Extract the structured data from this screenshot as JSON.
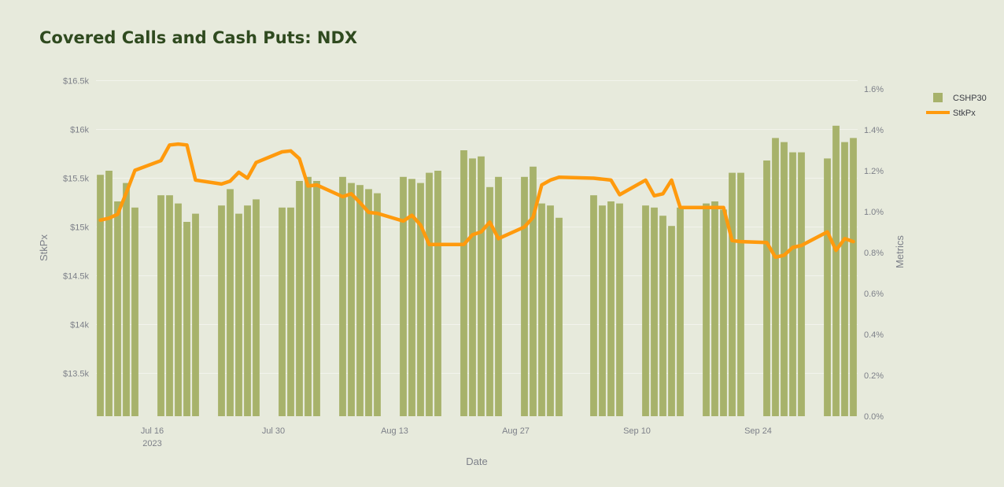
{
  "page": {
    "title": "Covered Calls and Cash Puts: NDX"
  },
  "colors": {
    "background": "#e7eadc",
    "bars": "#a7b26b",
    "line": "#ff9a0d",
    "grid": "#f2f3ec",
    "title": "#2f4a1f"
  },
  "chart_data": {
    "type": "bar",
    "title": "Covered Calls and Cash Puts: NDX",
    "xlabel": "Date",
    "ylabel": "StkPx",
    "y2label": "Metrics",
    "x_start": "2023-07-10",
    "x_end": "2023-10-06",
    "xticks": [
      {
        "date": "2023-07-16",
        "label": "Jul 16",
        "sublabel": "2023"
      },
      {
        "date": "2023-07-30",
        "label": "Jul 30",
        "sublabel": ""
      },
      {
        "date": "2023-08-13",
        "label": "Aug 13",
        "sublabel": ""
      },
      {
        "date": "2023-08-27",
        "label": "Aug 27",
        "sublabel": ""
      },
      {
        "date": "2023-09-10",
        "label": "Sep 10",
        "sublabel": ""
      },
      {
        "date": "2023-09-24",
        "label": "Sep 24",
        "sublabel": ""
      }
    ],
    "y_left": {
      "range": [
        13060,
        16520
      ],
      "ticks": [
        13500,
        14000,
        14500,
        15000,
        15500,
        16000,
        16500
      ],
      "tick_labels": [
        "$13.5k",
        "$14k",
        "$14.5k",
        "$15k",
        "$15.5k",
        "$16k",
        "$16.5k"
      ]
    },
    "y_right": {
      "range": [
        0,
        1.65
      ],
      "ticks": [
        0,
        0.2,
        0.4,
        0.6,
        0.8,
        1.0,
        1.2,
        1.4,
        1.6
      ],
      "tick_labels": [
        "0.0%",
        "0.2%",
        "0.4%",
        "0.6%",
        "0.8%",
        "1.0%",
        "1.2%",
        "1.4%",
        "1.6%"
      ]
    },
    "grid": true,
    "legend_position": "top-right",
    "series": [
      {
        "name": "CSHP30",
        "type": "bar",
        "axis": "right",
        "points": [
          [
            "2023-07-10",
            1.18
          ],
          [
            "2023-07-11",
            1.2
          ],
          [
            "2023-07-12",
            1.05
          ],
          [
            "2023-07-13",
            1.14
          ],
          [
            "2023-07-14",
            1.02
          ],
          [
            "2023-07-17",
            1.08
          ],
          [
            "2023-07-18",
            1.08
          ],
          [
            "2023-07-19",
            1.04
          ],
          [
            "2023-07-20",
            0.95
          ],
          [
            "2023-07-21",
            0.99
          ],
          [
            "2023-07-24",
            1.03
          ],
          [
            "2023-07-25",
            1.11
          ],
          [
            "2023-07-26",
            0.99
          ],
          [
            "2023-07-27",
            1.03
          ],
          [
            "2023-07-28",
            1.06
          ],
          [
            "2023-07-31",
            1.02
          ],
          [
            "2023-08-01",
            1.02
          ],
          [
            "2023-08-02",
            1.15
          ],
          [
            "2023-08-03",
            1.17
          ],
          [
            "2023-08-04",
            1.15
          ],
          [
            "2023-08-07",
            1.17
          ],
          [
            "2023-08-08",
            1.14
          ],
          [
            "2023-08-09",
            1.13
          ],
          [
            "2023-08-10",
            1.11
          ],
          [
            "2023-08-11",
            1.09
          ],
          [
            "2023-08-14",
            1.17
          ],
          [
            "2023-08-15",
            1.16
          ],
          [
            "2023-08-16",
            1.14
          ],
          [
            "2023-08-17",
            1.19
          ],
          [
            "2023-08-18",
            1.2
          ],
          [
            "2023-08-21",
            1.3
          ],
          [
            "2023-08-22",
            1.26
          ],
          [
            "2023-08-23",
            1.27
          ],
          [
            "2023-08-24",
            1.12
          ],
          [
            "2023-08-25",
            1.17
          ],
          [
            "2023-08-28",
            1.17
          ],
          [
            "2023-08-29",
            1.22
          ],
          [
            "2023-08-30",
            1.04
          ],
          [
            "2023-08-31",
            1.03
          ],
          [
            "2023-09-01",
            0.97
          ],
          [
            "2023-09-05",
            1.08
          ],
          [
            "2023-09-06",
            1.03
          ],
          [
            "2023-09-07",
            1.05
          ],
          [
            "2023-09-08",
            1.04
          ],
          [
            "2023-09-11",
            1.03
          ],
          [
            "2023-09-12",
            1.02
          ],
          [
            "2023-09-13",
            0.98
          ],
          [
            "2023-09-14",
            0.93
          ],
          [
            "2023-09-15",
            1.02
          ],
          [
            "2023-09-18",
            1.04
          ],
          [
            "2023-09-19",
            1.05
          ],
          [
            "2023-09-20",
            1.01
          ],
          [
            "2023-09-21",
            1.19
          ],
          [
            "2023-09-22",
            1.19
          ],
          [
            "2023-09-25",
            1.25
          ],
          [
            "2023-09-26",
            1.36
          ],
          [
            "2023-09-27",
            1.34
          ],
          [
            "2023-09-28",
            1.29
          ],
          [
            "2023-09-29",
            1.29
          ],
          [
            "2023-10-02",
            1.26
          ],
          [
            "2023-10-03",
            1.42
          ],
          [
            "2023-10-04",
            1.34
          ],
          [
            "2023-10-05",
            1.36
          ]
        ]
      },
      {
        "name": "StkPx",
        "type": "line",
        "axis": "left",
        "points": [
          [
            "2023-07-10",
            15070
          ],
          [
            "2023-07-11",
            15090
          ],
          [
            "2023-07-12",
            15130
          ],
          [
            "2023-07-13",
            15350
          ],
          [
            "2023-07-14",
            15580
          ],
          [
            "2023-07-17",
            15680
          ],
          [
            "2023-07-18",
            15840
          ],
          [
            "2023-07-19",
            15850
          ],
          [
            "2023-07-20",
            15840
          ],
          [
            "2023-07-21",
            15480
          ],
          [
            "2023-07-24",
            15440
          ],
          [
            "2023-07-25",
            15470
          ],
          [
            "2023-07-26",
            15560
          ],
          [
            "2023-07-27",
            15500
          ],
          [
            "2023-07-28",
            15660
          ],
          [
            "2023-07-31",
            15770
          ],
          [
            "2023-08-01",
            15780
          ],
          [
            "2023-08-02",
            15700
          ],
          [
            "2023-08-03",
            15420
          ],
          [
            "2023-08-04",
            15430
          ],
          [
            "2023-08-07",
            15310
          ],
          [
            "2023-08-08",
            15340
          ],
          [
            "2023-08-09",
            15250
          ],
          [
            "2023-08-10",
            15150
          ],
          [
            "2023-08-11",
            15140
          ],
          [
            "2023-08-14",
            15060
          ],
          [
            "2023-08-15",
            15120
          ],
          [
            "2023-08-16",
            15020
          ],
          [
            "2023-08-17",
            14820
          ],
          [
            "2023-08-18",
            14820
          ],
          [
            "2023-08-21",
            14820
          ],
          [
            "2023-08-22",
            14920
          ],
          [
            "2023-08-23",
            14950
          ],
          [
            "2023-08-24",
            15050
          ],
          [
            "2023-08-25",
            14880
          ],
          [
            "2023-08-28",
            15000
          ],
          [
            "2023-08-29",
            15100
          ],
          [
            "2023-08-30",
            15430
          ],
          [
            "2023-08-31",
            15480
          ],
          [
            "2023-09-01",
            15510
          ],
          [
            "2023-09-05",
            15500
          ],
          [
            "2023-09-06",
            15490
          ],
          [
            "2023-09-07",
            15480
          ],
          [
            "2023-09-08",
            15330
          ],
          [
            "2023-09-11",
            15480
          ],
          [
            "2023-09-12",
            15320
          ],
          [
            "2023-09-13",
            15340
          ],
          [
            "2023-09-14",
            15480
          ],
          [
            "2023-09-15",
            15200
          ],
          [
            "2023-09-18",
            15200
          ],
          [
            "2023-09-19",
            15200
          ],
          [
            "2023-09-20",
            15200
          ],
          [
            "2023-09-21",
            14860
          ],
          [
            "2023-09-22",
            14850
          ],
          [
            "2023-09-25",
            14840
          ],
          [
            "2023-09-26",
            14690
          ],
          [
            "2023-09-27",
            14710
          ],
          [
            "2023-09-28",
            14790
          ],
          [
            "2023-09-29",
            14810
          ],
          [
            "2023-10-02",
            14950
          ],
          [
            "2023-10-03",
            14760
          ],
          [
            "2023-10-04",
            14880
          ],
          [
            "2023-10-05",
            14850
          ]
        ]
      }
    ]
  }
}
